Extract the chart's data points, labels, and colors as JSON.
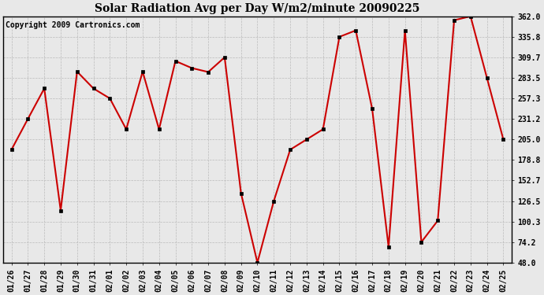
{
  "title": "Solar Radiation Avg per Day W/m2/minute 20090225",
  "copyright_text": "Copyright 2009 Cartronics.com",
  "dates": [
    "01/26",
    "01/27",
    "01/28",
    "01/29",
    "01/30",
    "01/31",
    "02/01",
    "02/02",
    "02/03",
    "02/04",
    "02/05",
    "02/06",
    "02/07",
    "02/08",
    "02/09",
    "02/10",
    "02/11",
    "02/12",
    "02/13",
    "02/14",
    "02/15",
    "02/16",
    "02/17",
    "02/18",
    "02/19",
    "02/20",
    "02/21",
    "02/22",
    "02/23",
    "02/24",
    "02/25"
  ],
  "values": [
    192.0,
    231.2,
    270.0,
    114.5,
    291.5,
    270.0,
    257.3,
    218.0,
    291.5,
    218.0,
    305.0,
    296.0,
    291.0,
    309.7,
    136.5,
    48.0,
    126.5,
    192.0,
    205.0,
    218.0,
    335.8,
    344.0,
    244.0,
    68.0,
    344.0,
    74.2,
    101.5,
    357.0,
    362.0,
    283.5,
    205.0
  ],
  "line_color": "#cc0000",
  "marker_color": "#000000",
  "bg_color": "#e8e8e8",
  "plot_bg_color": "#e8e8e8",
  "grid_color": "#bbbbbb",
  "title_fontsize": 10,
  "tick_fontsize": 7,
  "copyright_fontsize": 7,
  "ylim": [
    48.0,
    362.0
  ],
  "yticks": [
    48.0,
    74.2,
    100.3,
    126.5,
    152.7,
    178.8,
    205.0,
    231.2,
    257.3,
    283.5,
    309.7,
    335.8,
    362.0
  ]
}
